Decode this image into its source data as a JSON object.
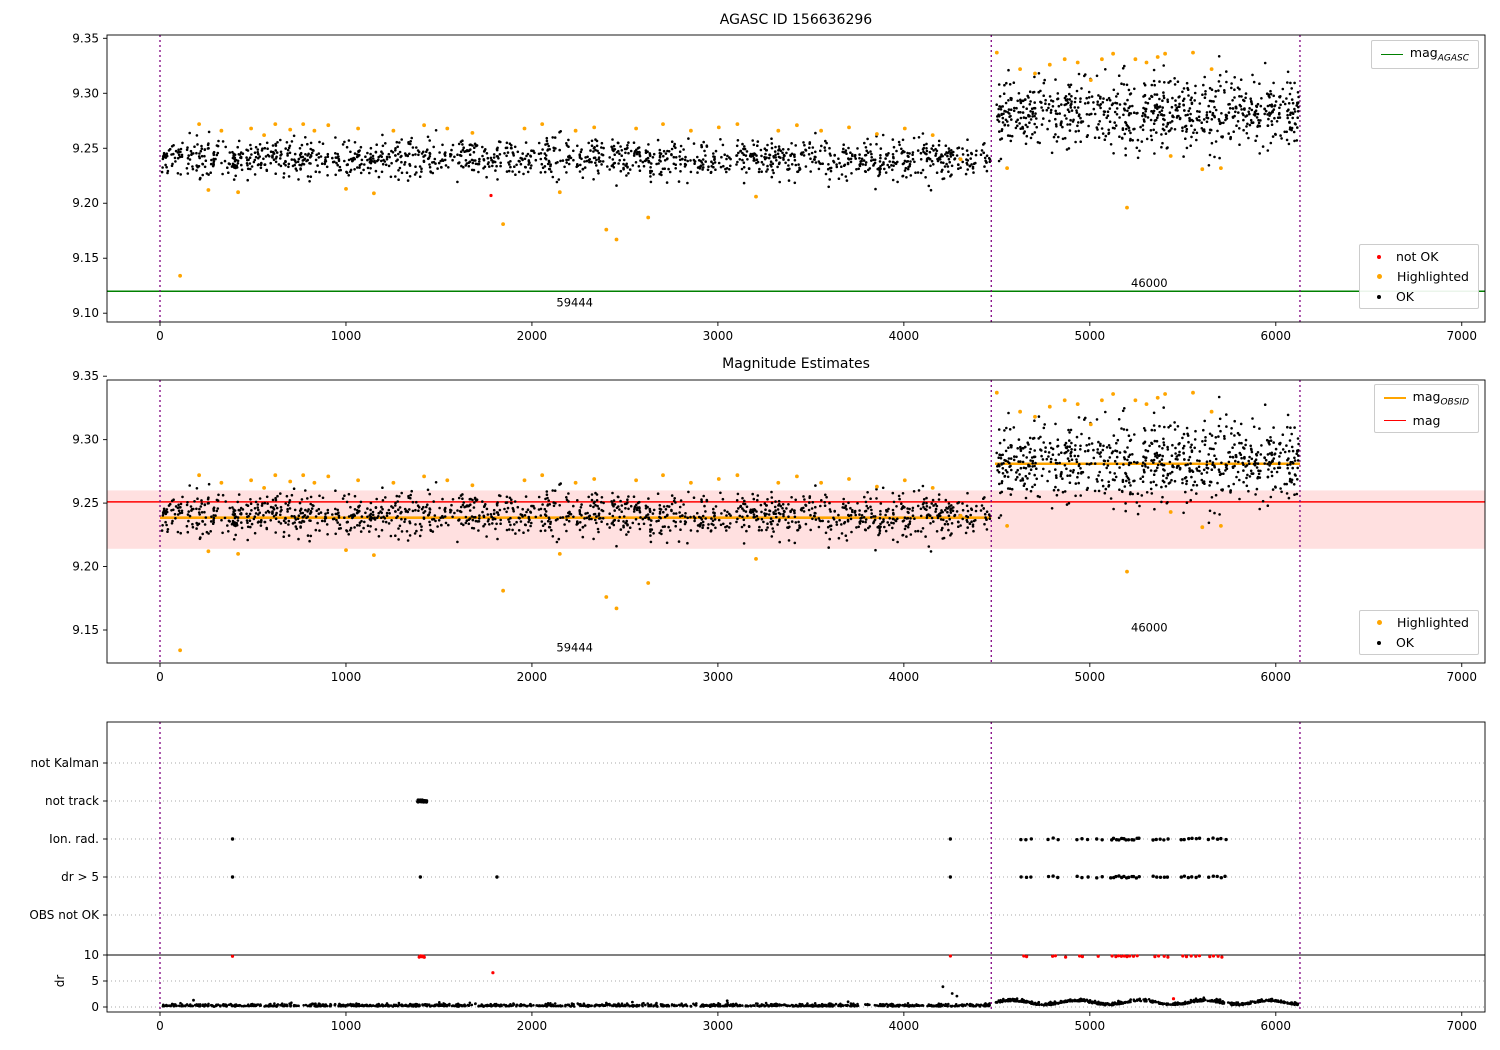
{
  "colors": {
    "ok": "#000000",
    "not_ok": "#ff0000",
    "highlighted": "#ffa500",
    "mag_agasc_line": "#008000",
    "mag_line": "#ff0000",
    "mag_obsid_line": "#ffa500",
    "obsid_boundary": "#800080",
    "error_band": "rgba(255,0,0,0.12)",
    "grid_dotted": "#aaaaaa",
    "axes": "#000000"
  },
  "chart_data": [
    {
      "type": "scatter",
      "title": "AGASC ID 156636296",
      "xlim": [
        -285,
        7125
      ],
      "ylim": [
        9.092,
        9.353
      ],
      "xticks": [
        0,
        1000,
        2000,
        3000,
        4000,
        5000,
        6000,
        7000
      ],
      "yticks": [
        9.1,
        9.15,
        9.2,
        9.25,
        9.3,
        9.35
      ],
      "grid": false,
      "legend_position": [
        "upper right",
        "lower right"
      ],
      "mag_agasc": 9.12,
      "obsid_boundaries": [
        0,
        4470,
        6130
      ],
      "obsid_labels": [
        {
          "text": "59444",
          "x": 2230,
          "y": 9.106
        },
        {
          "text": "46000",
          "x": 5320,
          "y": 9.124
        }
      ],
      "legend_line": {
        "label": "mag",
        "sub": "AGASC"
      },
      "legend_markers": [
        {
          "label": "not OK",
          "color_key": "not_ok"
        },
        {
          "label": "Highlighted",
          "color_key": "highlighted"
        },
        {
          "label": "OK",
          "color_key": "ok"
        }
      ],
      "ok_clusters": [
        {
          "n": 1450,
          "x_range": [
            5,
            4465
          ],
          "mean": 9.2405,
          "std": 0.0085,
          "seed": 11
        },
        {
          "n": 780,
          "x_range": [
            4495,
            6125
          ],
          "mean": 9.2825,
          "std": 0.0165,
          "seed": 22
        }
      ],
      "highlighted_points": [
        [
          108,
          9.134
        ],
        [
          210,
          9.272
        ],
        [
          260,
          9.212
        ],
        [
          330,
          9.266
        ],
        [
          420,
          9.21
        ],
        [
          490,
          9.268
        ],
        [
          560,
          9.262
        ],
        [
          620,
          9.272
        ],
        [
          700,
          9.267
        ],
        [
          770,
          9.272
        ],
        [
          830,
          9.266
        ],
        [
          905,
          9.271
        ],
        [
          1000,
          9.213
        ],
        [
          1065,
          9.268
        ],
        [
          1150,
          9.209
        ],
        [
          1255,
          9.266
        ],
        [
          1420,
          9.271
        ],
        [
          1545,
          9.268
        ],
        [
          1680,
          9.264
        ],
        [
          1845,
          9.181
        ],
        [
          1960,
          9.268
        ],
        [
          2055,
          9.272
        ],
        [
          2150,
          9.21
        ],
        [
          2235,
          9.266
        ],
        [
          2335,
          9.269
        ],
        [
          2400,
          9.176
        ],
        [
          2455,
          9.167
        ],
        [
          2560,
          9.268
        ],
        [
          2625,
          9.187
        ],
        [
          2705,
          9.272
        ],
        [
          2855,
          9.266
        ],
        [
          3005,
          9.269
        ],
        [
          3105,
          9.272
        ],
        [
          3205,
          9.206
        ],
        [
          3325,
          9.266
        ],
        [
          3425,
          9.271
        ],
        [
          3555,
          9.266
        ],
        [
          3705,
          9.269
        ],
        [
          3855,
          9.263
        ],
        [
          4005,
          9.268
        ],
        [
          4155,
          9.262
        ],
        [
          4305,
          9.24
        ],
        [
          4500,
          9.337
        ],
        [
          4555,
          9.232
        ],
        [
          4625,
          9.322
        ],
        [
          4705,
          9.318
        ],
        [
          4785,
          9.326
        ],
        [
          4865,
          9.331
        ],
        [
          4935,
          9.328
        ],
        [
          5005,
          9.312
        ],
        [
          5065,
          9.331
        ],
        [
          5125,
          9.336
        ],
        [
          5200,
          9.196
        ],
        [
          5245,
          9.331
        ],
        [
          5305,
          9.328
        ],
        [
          5365,
          9.333
        ],
        [
          5405,
          9.336
        ],
        [
          5435,
          9.243
        ],
        [
          5555,
          9.337
        ],
        [
          5605,
          9.231
        ],
        [
          5655,
          9.322
        ],
        [
          5705,
          9.232
        ]
      ],
      "not_ok_points": [
        [
          1780,
          9.207
        ]
      ]
    },
    {
      "type": "scatter",
      "title": "Magnitude Estimates",
      "xlim": [
        -285,
        7125
      ],
      "ylim": [
        9.124,
        9.347
      ],
      "xticks": [
        0,
        1000,
        2000,
        3000,
        4000,
        5000,
        6000,
        7000
      ],
      "yticks": [
        9.15,
        9.2,
        9.25,
        9.3,
        9.35
      ],
      "grid": false,
      "legend_position": [
        "upper right",
        "lower right"
      ],
      "mag": 9.251,
      "mag_error_band": [
        9.214,
        9.26
      ],
      "mag_obsid_segments": [
        {
          "x0": 0,
          "x1": 4470,
          "y": 9.2385
        },
        {
          "x0": 4490,
          "x1": 6130,
          "y": 9.281
        }
      ],
      "obsid_boundaries": [
        0,
        4470,
        6130
      ],
      "obsid_labels": [
        {
          "text": "59444",
          "x": 2230,
          "y": 9.133
        },
        {
          "text": "46000",
          "x": 5320,
          "y": 9.149
        }
      ],
      "legend_lines": [
        {
          "label": "mag",
          "sub": "OBSID",
          "color_key": "mag_obsid_line"
        },
        {
          "label": "mag",
          "sub": "",
          "color_key": "mag_line"
        }
      ],
      "legend_markers": [
        {
          "label": "Highlighted",
          "color_key": "highlighted"
        },
        {
          "label": "OK",
          "color_key": "ok"
        }
      ],
      "scatter_same_as_plot": 0
    },
    {
      "type": "flags",
      "title": "",
      "xlim": [
        -285,
        7125
      ],
      "xticks": [
        0,
        1000,
        2000,
        3000,
        4000,
        5000,
        6000,
        7000
      ],
      "obsid_boundaries": [
        0,
        4470,
        6130
      ],
      "categories": [
        "not Kalman",
        "not track",
        "Ion. rad.",
        "dr > 5",
        "OBS not OK"
      ],
      "flags": [
        {
          "label": "not Kalman",
          "events": []
        },
        {
          "label": "not track",
          "events": [
            {
              "x_range": [
                1385,
                1435
              ],
              "n": 28,
              "seed": 31
            }
          ]
        },
        {
          "label": "Ion. rad.",
          "events": [
            {
              "x": 390
            },
            {
              "x": 4250
            },
            {
              "x_range": [
                4630,
                4685
              ],
              "n": 3,
              "seed": 32
            },
            {
              "x_range": [
                4775,
                4830
              ],
              "n": 3,
              "seed": 33
            },
            {
              "x_range": [
                4930,
                4990
              ],
              "n": 3,
              "seed": 34
            },
            {
              "x_range": [
                5040,
                5065
              ],
              "n": 2,
              "seed": 35
            },
            {
              "x_range": [
                5115,
                5265
              ],
              "n": 12,
              "seed": 36
            },
            {
              "x_range": [
                5340,
                5420
              ],
              "n": 5,
              "seed": 37
            },
            {
              "x_range": [
                5490,
                5590
              ],
              "n": 6,
              "seed": 38
            },
            {
              "x_range": [
                5640,
                5730
              ],
              "n": 5,
              "seed": 39
            }
          ]
        },
        {
          "label": "dr > 5",
          "events": [
            {
              "x": 390
            },
            {
              "x": 1400
            },
            {
              "x": 1812
            },
            {
              "x": 4250
            },
            {
              "x_range": [
                4630,
                4685
              ],
              "n": 3,
              "seed": 42
            },
            {
              "x_range": [
                4775,
                4830
              ],
              "n": 3,
              "seed": 43
            },
            {
              "x_range": [
                4930,
                4990
              ],
              "n": 3,
              "seed": 44
            },
            {
              "x_range": [
                5040,
                5065
              ],
              "n": 2,
              "seed": 45
            },
            {
              "x_range": [
                5115,
                5265
              ],
              "n": 12,
              "seed": 46
            },
            {
              "x_range": [
                5340,
                5420
              ],
              "n": 5,
              "seed": 47
            },
            {
              "x_range": [
                5490,
                5590
              ],
              "n": 6,
              "seed": 48
            },
            {
              "x_range": [
                5640,
                5730
              ],
              "n": 5,
              "seed": 49
            }
          ]
        },
        {
          "label": "OBS not OK",
          "events": []
        }
      ],
      "dr_axis": {
        "label": "dr",
        "ticks": [
          0,
          5,
          10
        ],
        "clip_line": 10
      },
      "dr_ok_clusters": [
        {
          "n": 1150,
          "x_range": [
            5,
            4465
          ],
          "base": 0.3,
          "noise": 0.22,
          "wave": false,
          "seed": 61
        },
        {
          "n": 620,
          "x_range": [
            4495,
            6125
          ],
          "base": 0.9,
          "noise": 0.3,
          "wave": true,
          "seed": 62
        }
      ],
      "dr_extra_points": [
        [
          180,
          1.3
        ],
        [
          2540,
          0.95
        ],
        [
          3050,
          1.2
        ],
        [
          3700,
          1.0
        ],
        [
          4210,
          3.9
        ],
        [
          4260,
          2.6
        ],
        [
          4285,
          2.1
        ]
      ],
      "dr_not_ok_points": [
        [
          390,
          9.75
        ],
        [
          1394,
          9.6
        ],
        [
          1398,
          9.75
        ],
        [
          1402,
          9.85
        ],
        [
          1406,
          9.7
        ],
        [
          1410,
          9.8
        ],
        [
          1414,
          9.65
        ],
        [
          1418,
          9.75
        ],
        [
          1421,
          9.55
        ],
        [
          1790,
          6.6
        ],
        [
          4250,
          9.8
        ],
        [
          4645,
          9.8
        ],
        [
          4660,
          9.7
        ],
        [
          4800,
          9.75
        ],
        [
          4815,
          9.85
        ],
        [
          4870,
          9.6
        ],
        [
          4945,
          9.8
        ],
        [
          4960,
          9.7
        ],
        [
          5045,
          9.75
        ],
        [
          5120,
          9.8
        ],
        [
          5140,
          9.7
        ],
        [
          5155,
          9.85
        ],
        [
          5170,
          9.75
        ],
        [
          5185,
          9.8
        ],
        [
          5200,
          9.7
        ],
        [
          5215,
          9.8
        ],
        [
          5235,
          9.75
        ],
        [
          5255,
          9.85
        ],
        [
          5350,
          9.7
        ],
        [
          5370,
          9.8
        ],
        [
          5400,
          9.75
        ],
        [
          5420,
          9.6
        ],
        [
          5450,
          1.6
        ],
        [
          5500,
          9.8
        ],
        [
          5520,
          9.7
        ],
        [
          5545,
          9.8
        ],
        [
          5570,
          9.75
        ],
        [
          5590,
          9.85
        ],
        [
          5645,
          9.7
        ],
        [
          5665,
          9.8
        ],
        [
          5690,
          9.75
        ],
        [
          5710,
          9.6
        ]
      ]
    }
  ]
}
